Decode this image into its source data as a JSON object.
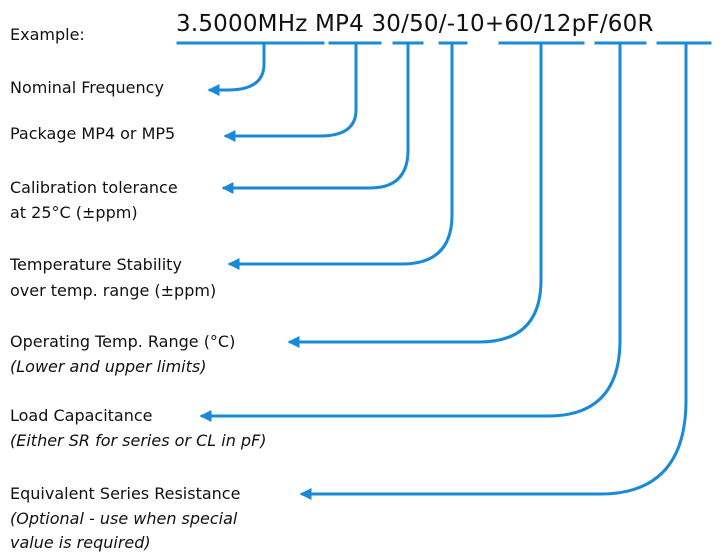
{
  "example_label": "Example:",
  "part_number": "3.5000MHz MP4 30/50/-10+60/12pF/60R",
  "accent_color": "#1a8ad8",
  "fields": [
    {
      "label": "Nominal Frequency",
      "note": []
    },
    {
      "label": "Package MP4 or MP5",
      "note": []
    },
    {
      "label": "Calibration tolerance",
      "note": [
        "at 25°C (±ppm)"
      ]
    },
    {
      "label": "Temperature Stability",
      "note": [
        "over temp. range (±ppm)"
      ]
    },
    {
      "label": "Operating Temp. Range (°C)",
      "note": [
        "(Lower and upper limits)"
      ]
    },
    {
      "label": "Load Capacitance",
      "note": [
        "(Either SR for series or CL in pF)"
      ]
    },
    {
      "label": "Equivalent Series Resistance",
      "note": [
        "(Optional - use when special",
        "value is required)"
      ]
    }
  ]
}
